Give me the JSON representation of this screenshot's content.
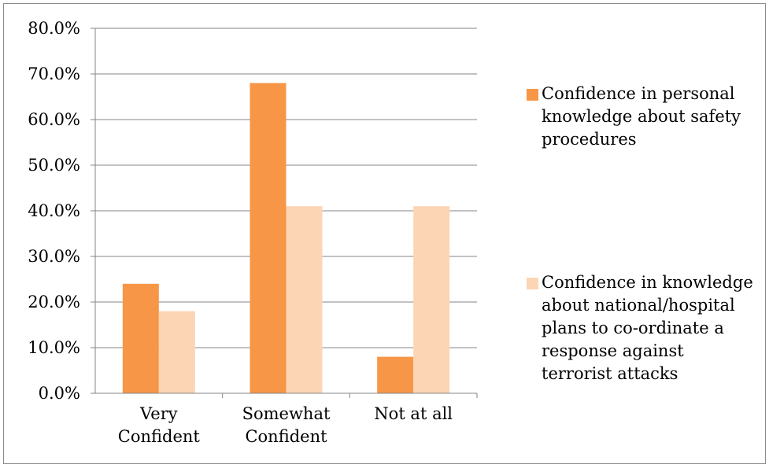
{
  "chart_data": {
    "type": "bar",
    "categories": [
      [
        "Very",
        "Confident"
      ],
      [
        "Somewhat",
        "Confident"
      ],
      [
        "Not at all"
      ]
    ],
    "series": [
      {
        "name": "Confidence in personal knowledge about safety procedures",
        "color": "#F79646",
        "values": [
          24,
          68,
          8
        ]
      },
      {
        "name": "Confidence in knowledge about national/hospital plans to co-ordinate a response against terrorist attacks",
        "color": "#FCD5B5",
        "values": [
          18,
          41,
          41
        ]
      }
    ],
    "ylim": [
      0,
      80
    ],
    "yticks": [
      "0.0%",
      "10.0%",
      "20.0%",
      "30.0%",
      "40.0%",
      "50.0%",
      "60.0%",
      "70.0%",
      "80.0%"
    ],
    "grid": true,
    "legend_position": "right"
  }
}
